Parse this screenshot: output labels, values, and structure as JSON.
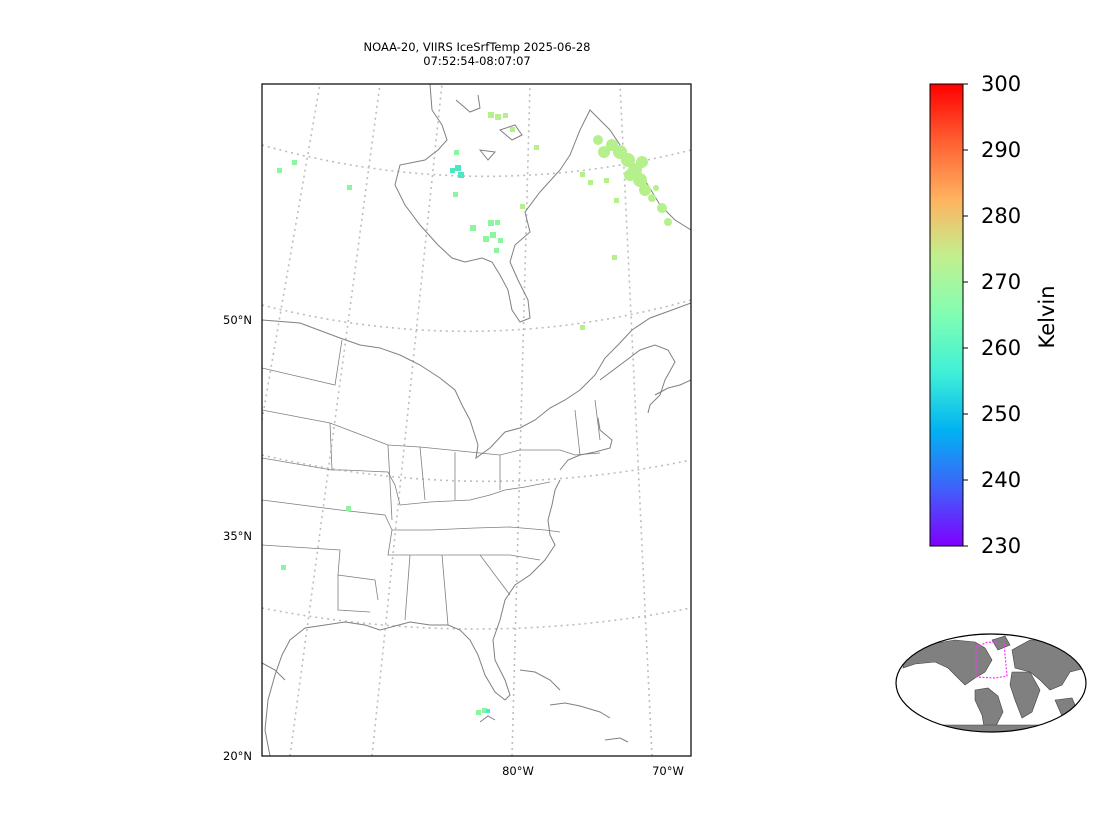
{
  "title": {
    "line1": "NOAA-20, VIIRS IceSrfTemp 2025-06-28",
    "line2": "07:52:54-08:07:07"
  },
  "map": {
    "projection": "conic",
    "lat_labels": [
      "50°N",
      "35°N",
      "20°N"
    ],
    "lon_labels": [
      "80°W",
      "70°W"
    ],
    "graticule": "dotted gray",
    "land_color": "#ffffff",
    "coast_color": "#808080"
  },
  "colorbar": {
    "label": "Kelvin",
    "min": 230,
    "max": 300,
    "ticks": [
      "300",
      "290",
      "280",
      "270",
      "260",
      "250",
      "240",
      "230"
    ],
    "colormap": "rainbow",
    "colors": [
      "#7f00ff",
      "#3f61fa",
      "#01b2f2",
      "#3ff0d7",
      "#80feb3",
      "#c1f08f",
      "#ffb360",
      "#ff6032",
      "#ff0000"
    ]
  },
  "observations": {
    "units": "K",
    "typical_value_range": [
      258,
      275
    ]
  },
  "inset": {
    "description": "world",
    "land_color": "#808080",
    "highlight_color": "#ff33ff"
  }
}
